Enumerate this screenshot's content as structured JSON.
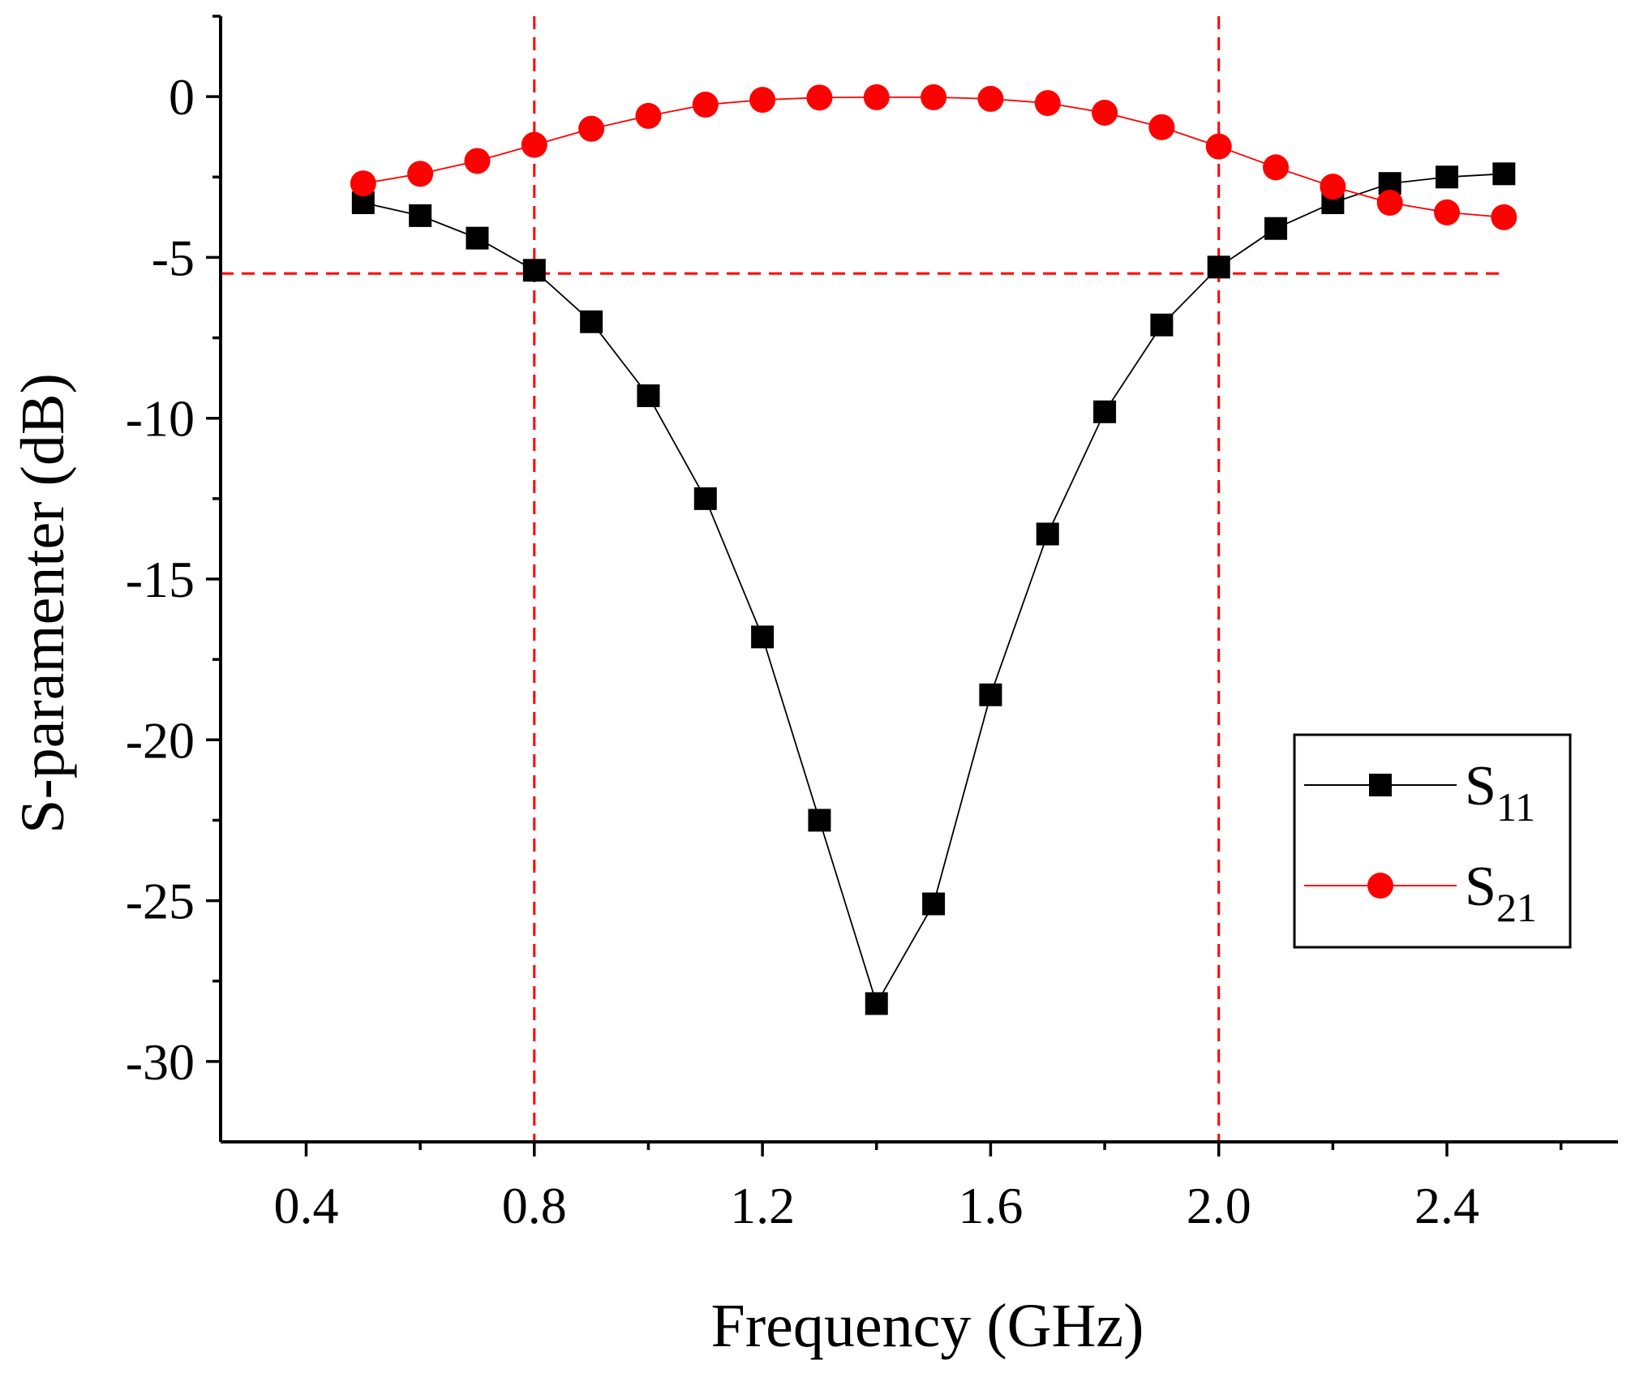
{
  "chart_data": {
    "type": "line",
    "title": "",
    "xlabel": "Frequency (GHz)",
    "ylabel": "S-paramenter (dB)",
    "xlim": [
      0.25,
      2.7
    ],
    "ylim": [
      -32.5,
      2.5
    ],
    "xticks": [
      0.4,
      0.8,
      1.2,
      1.6,
      2.0,
      2.4
    ],
    "xtick_labels": [
      "0.4",
      "0.8",
      "1.2",
      "1.6",
      "2.0",
      "2.4"
    ],
    "xminor": [
      0.6,
      1.0,
      1.4,
      1.8,
      2.2,
      2.6
    ],
    "yticks": [
      0,
      -5,
      -10,
      -15,
      -20,
      -25,
      -30
    ],
    "ytick_labels": [
      "0",
      "-5",
      "-10",
      "-15",
      "-20",
      "-25",
      "-30"
    ],
    "yminor": [
      2.5,
      -2.5,
      -7.5,
      -12.5,
      -17.5,
      -22.5,
      -27.5
    ],
    "grid": false,
    "x": [
      0.5,
      0.6,
      0.7,
      0.8,
      0.9,
      1.0,
      1.1,
      1.2,
      1.3,
      1.4,
      1.5,
      1.6,
      1.7,
      1.8,
      1.9,
      2.0,
      2.1,
      2.2,
      2.3,
      2.4,
      2.5
    ],
    "series": [
      {
        "name": "S11",
        "label_main": "S",
        "label_sub": "11",
        "color": "#000000",
        "marker": "square",
        "values": [
          -3.3,
          -3.7,
          -4.4,
          -5.4,
          -7.0,
          -9.3,
          -12.5,
          -16.8,
          -22.5,
          -28.2,
          -25.1,
          -18.6,
          -13.6,
          -9.8,
          -7.1,
          -5.3,
          -4.1,
          -3.3,
          -2.7,
          -2.5,
          -2.4
        ]
      },
      {
        "name": "S21",
        "label_main": "S",
        "label_sub": "21",
        "color": "#ff0000",
        "marker": "circle",
        "values": [
          -2.7,
          -2.4,
          -2.0,
          -1.5,
          -1.0,
          -0.6,
          -0.25,
          -0.1,
          -0.03,
          -0.02,
          -0.02,
          -0.07,
          -0.2,
          -0.5,
          -0.95,
          -1.55,
          -2.2,
          -2.8,
          -3.3,
          -3.6,
          -3.75
        ]
      }
    ],
    "reference_lines": [
      {
        "orientation": "vertical",
        "value": 0.8,
        "color": "#ff0000",
        "style": "dashed"
      },
      {
        "orientation": "vertical",
        "value": 2.0,
        "color": "#ff0000",
        "style": "dashed"
      },
      {
        "orientation": "horizontal",
        "value": -5.5,
        "from": 0.25,
        "to": 2.5,
        "color": "#ff0000",
        "style": "dashed"
      }
    ],
    "legend_position": "lower-right"
  }
}
